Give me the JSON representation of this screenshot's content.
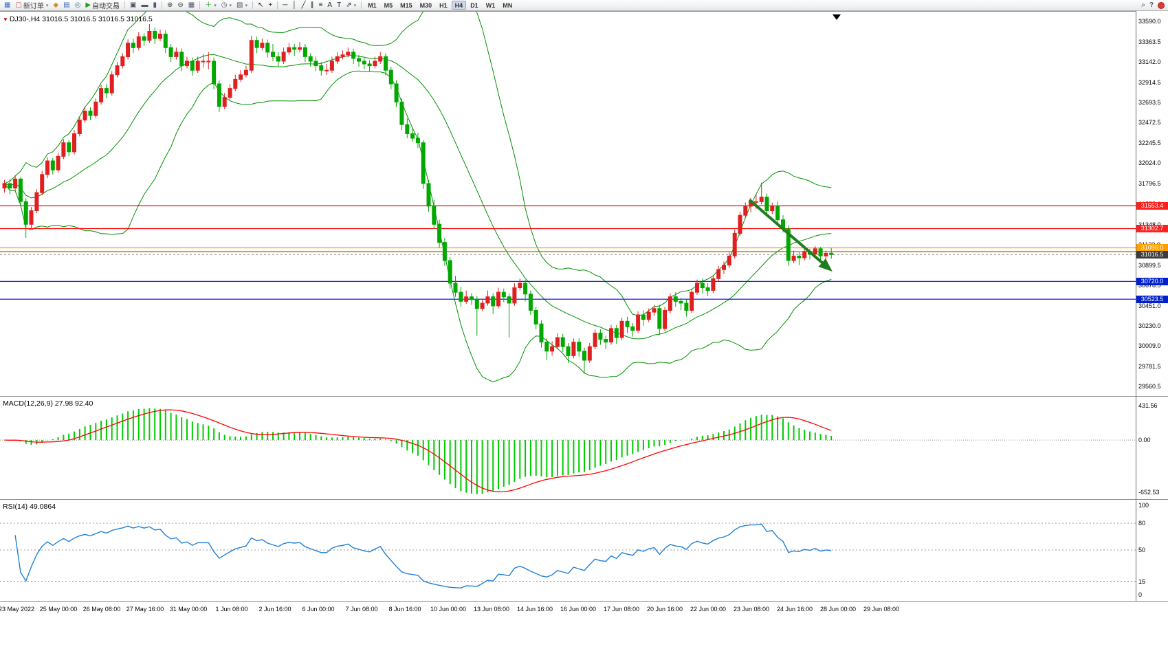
{
  "toolbar": {
    "items": [
      {
        "name": "new-chart-icon",
        "glyph": "▦",
        "color": "#3f6fb5"
      },
      {
        "name": "new-order-button",
        "glyph": "▢",
        "color": "#cc3b33",
        "label": "新订单",
        "dropdown": true
      },
      {
        "name": "market-watch-icon",
        "glyph": "◆",
        "color": "#c9971f"
      },
      {
        "name": "data-window-icon",
        "glyph": "▤",
        "color": "#3f6fb5"
      },
      {
        "name": "navigator-icon",
        "glyph": "◎",
        "color": "#2f7fbf"
      },
      {
        "name": "autotrading-button",
        "glyph": "▶",
        "color": "#1fa11f",
        "label": "自动交易"
      },
      {
        "name": "sep"
      },
      {
        "name": "cascade-windows-icon",
        "glyph": "▣",
        "color": "#556"
      },
      {
        "name": "tile-horizontal-icon",
        "glyph": "▬",
        "color": "#556"
      },
      {
        "name": "tile-vertical-icon",
        "glyph": "▮",
        "color": "#556"
      },
      {
        "name": "sep"
      },
      {
        "name": "zoom-in-icon",
        "glyph": "⊕",
        "color": "#444"
      },
      {
        "name": "zoom-out-icon",
        "glyph": "⊖",
        "color": "#444"
      },
      {
        "name": "chart-grid-icon",
        "glyph": "▦",
        "color": "#556"
      },
      {
        "name": "sep"
      },
      {
        "name": "indicators-add-icon",
        "glyph": "＋",
        "color": "#1fa11f",
        "dropdown": true
      },
      {
        "name": "periods-icon",
        "glyph": "◷",
        "color": "#556",
        "dropdown": true
      },
      {
        "name": "templates-icon",
        "glyph": "▧",
        "color": "#556",
        "dropdown": true
      },
      {
        "name": "sep"
      },
      {
        "name": "cursor-icon",
        "glyph": "↖",
        "color": "#222"
      },
      {
        "name": "crosshair-icon",
        "glyph": "+",
        "color": "#222"
      },
      {
        "name": "sep"
      },
      {
        "name": "hline-icon",
        "glyph": "─",
        "color": "#222"
      },
      {
        "name": "vline-icon",
        "glyph": "│",
        "color": "#222"
      },
      {
        "name": "trendline-icon",
        "glyph": "╱",
        "color": "#222"
      },
      {
        "name": "channel-icon",
        "glyph": "∥",
        "color": "#222"
      },
      {
        "name": "fibonacci-icon",
        "glyph": "≡",
        "color": "#222"
      },
      {
        "name": "text-icon",
        "glyph": "A",
        "color": "#222"
      },
      {
        "name": "label-icon",
        "glyph": "T",
        "color": "#222"
      },
      {
        "name": "arrows-icon",
        "glyph": "⇗",
        "color": "#222",
        "dropdown": true
      },
      {
        "name": "sep"
      }
    ],
    "timeframes": [
      "M1",
      "M5",
      "M15",
      "M30",
      "H1",
      "H4",
      "D1",
      "W1",
      "MN"
    ],
    "active_timeframe": "H4"
  },
  "chart": {
    "symbol_label": "DJ30-,H4",
    "ohlc_text": "31016.5 31016.5 31016.5 31016.5",
    "colors": {
      "up": "#e02020",
      "down": "#00a800",
      "bollinger": "#009000",
      "price_line": "#888888"
    },
    "levels": [
      {
        "name": "resistance-line-1",
        "value": 31553.4,
        "label": "31553.4",
        "color": "#ff0000",
        "badge": "#ff2020"
      },
      {
        "name": "resistance-line-2",
        "value": 31302.7,
        "label": "31302.7",
        "color": "#ff0000",
        "badge": "#ff2020"
      },
      {
        "name": "gold-line-1",
        "value": 31090.0,
        "label": "31090.0",
        "color": "#ff9900",
        "badge": "#ffa000"
      },
      {
        "name": "gold-line-2",
        "value": 31048.0,
        "color": "#997000"
      },
      {
        "name": "current-price-line",
        "value": 31016.5,
        "label": "31016.5",
        "color": "#888888",
        "badge": "#3c3c3c",
        "dashed": true
      },
      {
        "name": "support-line-1",
        "value": 30720.0,
        "label": "30720.0",
        "color": "#0000e0",
        "badge": "#0020d0"
      },
      {
        "name": "support-line-2",
        "value": 30523.5,
        "label": "30523.5",
        "color": "#0000e0",
        "badge": "#0020d0"
      }
    ],
    "y_ticks": [
      "33590.0",
      "33363.5",
      "33142.0",
      "32914.5",
      "32693.5",
      "32472.5",
      "32245.5",
      "32024.0",
      "31796.5",
      "31575.0",
      "31348.0",
      "31122.0",
      "30899.5",
      "30678.5",
      "30451.0",
      "30230.0",
      "30009.0",
      "29781.5",
      "29560.5"
    ]
  },
  "macd": {
    "label": "MACD(12,26,9) 27.98 92.40",
    "axis": [
      {
        "text": "431.56",
        "value": 431.56
      },
      {
        "text": "0.00",
        "value": 0
      },
      {
        "text": "-652.53",
        "value": -652.53
      }
    ],
    "histogram_color": "#00cc00",
    "signal_color": "#ff0000"
  },
  "rsi": {
    "label": "RSI(14) 49.0864",
    "axis": [
      {
        "text": "100",
        "value": 100
      },
      {
        "text": "80",
        "value": 80
      },
      {
        "text": "50",
        "value": 50
      },
      {
        "text": "15",
        "value": 15
      },
      {
        "text": "0",
        "value": 0
      }
    ],
    "levels": [
      80,
      50,
      15
    ],
    "line_color": "#1e7fd6"
  },
  "x_axis": {
    "labels": [
      "23 May 2022",
      "25 May 00:00",
      "26 May 08:00",
      "27 May 16:00",
      "31 May 00:00",
      "1 Jun 08:00",
      "2 Jun 16:00",
      "6 Jun 00:00",
      "7 Jun 08:00",
      "8 Jun 16:00",
      "10 Jun 00:00",
      "13 Jun 08:00",
      "14 Jun 16:00",
      "16 Jun 00:00",
      "17 Jun 08:00",
      "20 Jun 16:00",
      "22 Jun 00:00",
      "23 Jun 08:00",
      "24 Jun 16:00",
      "28 Jun 00:00",
      "29 Jun 08:00"
    ]
  },
  "chart_data": {
    "type": "candlestick",
    "symbol": "DJ30-",
    "timeframe": "H4",
    "ylim": [
      29455,
      33704
    ],
    "indicators": {
      "bollinger": {
        "period": 20,
        "deviation": 2
      },
      "macd": {
        "fast": 12,
        "slow": 26,
        "signal": 9,
        "values": [
          27.98,
          92.4
        ]
      },
      "rsi": {
        "period": 14,
        "value": 49.0864
      }
    },
    "annotation_arrow": {
      "from_price": 31620,
      "to_price": 30860,
      "color": "#1e7d1e"
    },
    "candles": [
      [
        31750,
        31840,
        31700,
        31800
      ],
      [
        31800,
        31850,
        31680,
        31750
      ],
      [
        31750,
        31890,
        31720,
        31850
      ],
      [
        31850,
        31870,
        31550,
        31600
      ],
      [
        31600,
        31640,
        31200,
        31350
      ],
      [
        31350,
        31540,
        31310,
        31500
      ],
      [
        31500,
        31740,
        31470,
        31700
      ],
      [
        31700,
        31940,
        31670,
        31900
      ],
      [
        31900,
        32090,
        31860,
        32050
      ],
      [
        32050,
        32080,
        31900,
        31950
      ],
      [
        31950,
        32140,
        31920,
        32100
      ],
      [
        32100,
        32290,
        32070,
        32250
      ],
      [
        32250,
        32280,
        32100,
        32150
      ],
      [
        32150,
        32390,
        32120,
        32350
      ],
      [
        32350,
        32540,
        32320,
        32500
      ],
      [
        32500,
        32650,
        32470,
        32600
      ],
      [
        32600,
        32640,
        32500,
        32550
      ],
      [
        32550,
        32740,
        32520,
        32700
      ],
      [
        32700,
        32890,
        32670,
        32850
      ],
      [
        32850,
        32900,
        32740,
        32800
      ],
      [
        32800,
        33040,
        32770,
        33000
      ],
      [
        33000,
        33140,
        32970,
        33100
      ],
      [
        33100,
        33240,
        33070,
        33200
      ],
      [
        33200,
        33390,
        33170,
        33350
      ],
      [
        33350,
        33400,
        33240,
        33300
      ],
      [
        33300,
        33470,
        33270,
        33420
      ],
      [
        33420,
        33460,
        33320,
        33380
      ],
      [
        33380,
        33560,
        33350,
        33480
      ],
      [
        33480,
        33520,
        33340,
        33400
      ],
      [
        33400,
        33500,
        33370,
        33450
      ],
      [
        33450,
        33490,
        33240,
        33300
      ],
      [
        33300,
        33340,
        33140,
        33200
      ],
      [
        33200,
        33300,
        33170,
        33250
      ],
      [
        33250,
        33290,
        33040,
        33100
      ],
      [
        33100,
        33200,
        33070,
        33150
      ],
      [
        33150,
        33190,
        32990,
        33050
      ],
      [
        33050,
        33200,
        33020,
        33150
      ],
      [
        33150,
        33230,
        33080,
        33150
      ],
      [
        33150,
        33250,
        33060,
        33150
      ],
      [
        33150,
        33190,
        32840,
        32900
      ],
      [
        32900,
        32940,
        32590,
        32650
      ],
      [
        32650,
        32800,
        32620,
        32750
      ],
      [
        32750,
        32900,
        32720,
        32850
      ],
      [
        32850,
        33000,
        32820,
        32950
      ],
      [
        32950,
        33050,
        32920,
        33000
      ],
      [
        33000,
        33100,
        32970,
        33050
      ],
      [
        33050,
        33430,
        33020,
        33380
      ],
      [
        33380,
        33420,
        33240,
        33300
      ],
      [
        33300,
        33400,
        33270,
        33350
      ],
      [
        33350,
        33390,
        33190,
        33250
      ],
      [
        33250,
        33340,
        33150,
        33200
      ],
      [
        33200,
        33250,
        33090,
        33150
      ],
      [
        33150,
        33300,
        33120,
        33250
      ],
      [
        33250,
        33350,
        33220,
        33300
      ],
      [
        33300,
        33340,
        33210,
        33280
      ],
      [
        33280,
        33360,
        33250,
        33300
      ],
      [
        33300,
        33340,
        33140,
        33200
      ],
      [
        33200,
        33240,
        33090,
        33150
      ],
      [
        33150,
        33200,
        33040,
        33100
      ],
      [
        33100,
        33140,
        32990,
        33050
      ],
      [
        33050,
        33120,
        33000,
        33050
      ],
      [
        33050,
        33200,
        33020,
        33150
      ],
      [
        33150,
        33250,
        33120,
        33200
      ],
      [
        33200,
        33270,
        33170,
        33220
      ],
      [
        33220,
        33300,
        33190,
        33250
      ],
      [
        33250,
        33290,
        33120,
        33180
      ],
      [
        33180,
        33220,
        33090,
        33150
      ],
      [
        33150,
        33190,
        33060,
        33120
      ],
      [
        33120,
        33160,
        33040,
        33100
      ],
      [
        33100,
        33200,
        33070,
        33150
      ],
      [
        33150,
        33250,
        33120,
        33200
      ],
      [
        33200,
        33240,
        32990,
        33050
      ],
      [
        33050,
        33090,
        32840,
        32900
      ],
      [
        32900,
        32940,
        32640,
        32700
      ],
      [
        32700,
        32740,
        32390,
        32450
      ],
      [
        32450,
        32520,
        32300,
        32350
      ],
      [
        32350,
        32420,
        32260,
        32300
      ],
      [
        32300,
        32360,
        32190,
        32250
      ],
      [
        32250,
        32280,
        31740,
        31800
      ],
      [
        31800,
        31840,
        31490,
        31550
      ],
      [
        31550,
        31620,
        31300,
        31350
      ],
      [
        31350,
        31400,
        31090,
        31150
      ],
      [
        31150,
        31200,
        30890,
        30950
      ],
      [
        30950,
        30990,
        30640,
        30700
      ],
      [
        30700,
        30780,
        30550,
        30600
      ],
      [
        30600,
        30660,
        30440,
        30500
      ],
      [
        30500,
        30620,
        30470,
        30550
      ],
      [
        30550,
        30590,
        30460,
        30520
      ],
      [
        30520,
        30560,
        30120,
        30420
      ],
      [
        30420,
        30530,
        30390,
        30480
      ],
      [
        30480,
        30620,
        30450,
        30550
      ],
      [
        30550,
        30590,
        30360,
        30450
      ],
      [
        30450,
        30650,
        30420,
        30600
      ],
      [
        30600,
        30640,
        30490,
        30550
      ],
      [
        30550,
        30590,
        30100,
        30480
      ],
      [
        30480,
        30700,
        30450,
        30650
      ],
      [
        30650,
        30750,
        30620,
        30700
      ],
      [
        30700,
        30740,
        30500,
        30580
      ],
      [
        30580,
        30620,
        30350,
        30400
      ],
      [
        30400,
        30440,
        30190,
        30250
      ],
      [
        30250,
        30290,
        29990,
        30050
      ],
      [
        30050,
        30090,
        29850,
        29950
      ],
      [
        29950,
        30060,
        29900,
        30000
      ],
      [
        30000,
        30150,
        29970,
        30100
      ],
      [
        30100,
        30140,
        29940,
        30000
      ],
      [
        30000,
        30040,
        29820,
        29900
      ],
      [
        29900,
        30090,
        29870,
        30050
      ],
      [
        30050,
        30090,
        29890,
        29950
      ],
      [
        29950,
        29990,
        29700,
        29850
      ],
      [
        29850,
        30040,
        29820,
        30000
      ],
      [
        30000,
        30190,
        29970,
        30150
      ],
      [
        30150,
        30190,
        30020,
        30080
      ],
      [
        30080,
        30120,
        29970,
        30050
      ],
      [
        30050,
        30240,
        30020,
        30200
      ],
      [
        30200,
        30240,
        30030,
        30100
      ],
      [
        30100,
        30320,
        30070,
        30280
      ],
      [
        30280,
        30330,
        30150,
        30220
      ],
      [
        30220,
        30260,
        30110,
        30180
      ],
      [
        30180,
        30390,
        30150,
        30350
      ],
      [
        30350,
        30400,
        30230,
        30300
      ],
      [
        30300,
        30420,
        30270,
        30380
      ],
      [
        30380,
        30460,
        30340,
        30420
      ],
      [
        30420,
        30460,
        30130,
        30200
      ],
      [
        30200,
        30440,
        30170,
        30400
      ],
      [
        30400,
        30590,
        30370,
        30550
      ],
      [
        30550,
        30600,
        30440,
        30500
      ],
      [
        30500,
        30540,
        30400,
        30480
      ],
      [
        30480,
        30520,
        30330,
        30400
      ],
      [
        30400,
        30640,
        30370,
        30600
      ],
      [
        30600,
        30740,
        30570,
        30700
      ],
      [
        30700,
        30750,
        30590,
        30650
      ],
      [
        30650,
        30700,
        30560,
        30620
      ],
      [
        30620,
        30790,
        30590,
        30750
      ],
      [
        30750,
        30890,
        30720,
        30850
      ],
      [
        30850,
        30940,
        30800,
        30900
      ],
      [
        30900,
        31040,
        30870,
        31000
      ],
      [
        31000,
        31290,
        30970,
        31250
      ],
      [
        31250,
        31490,
        31220,
        31450
      ],
      [
        31450,
        31590,
        31420,
        31550
      ],
      [
        31550,
        31640,
        31480,
        31600
      ],
      [
        31600,
        31680,
        31520,
        31600
      ],
      [
        31600,
        31810,
        31570,
        31650
      ],
      [
        31650,
        31690,
        31440,
        31500
      ],
      [
        31500,
        31590,
        31460,
        31550
      ],
      [
        31550,
        31600,
        31350,
        31400
      ],
      [
        31400,
        31450,
        31260,
        31300
      ],
      [
        31300,
        31340,
        30890,
        30950
      ],
      [
        30950,
        31060,
        30920,
        31000
      ],
      [
        31000,
        31040,
        30900,
        30980
      ],
      [
        30980,
        31090,
        30950,
        31050
      ],
      [
        31050,
        31080,
        30960,
        31020
      ],
      [
        31020,
        31110,
        30990,
        31080
      ],
      [
        31080,
        31100,
        30950,
        31000
      ],
      [
        31000,
        31060,
        30940,
        31030
      ],
      [
        31030,
        31090,
        30970,
        31016.5
      ]
    ]
  }
}
